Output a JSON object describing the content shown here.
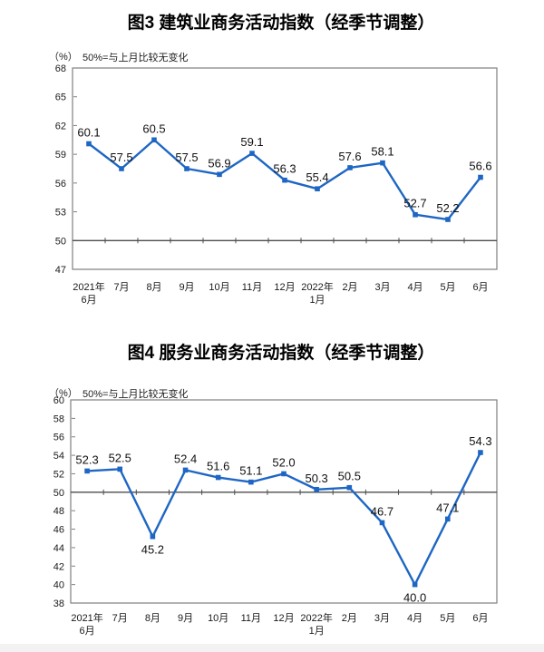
{
  "page": {
    "background": "#ffffff",
    "footer_strip_color": "#f2f2f2"
  },
  "chart_data": [
    {
      "type": "line",
      "title": "图3  建筑业商务活动指数（经季节调整）",
      "unit_label": "（%）",
      "note": "50%=与上月比较无变化",
      "categories": [
        "2021年\n6月",
        "7月",
        "8月",
        "9月",
        "10月",
        "11月",
        "12月",
        "2022年\n1月",
        "2月",
        "3月",
        "4月",
        "5月",
        "6月"
      ],
      "values": [
        60.1,
        57.5,
        60.5,
        57.5,
        56.9,
        59.1,
        56.3,
        55.4,
        57.6,
        58.1,
        52.7,
        52.2,
        56.6
      ],
      "ylim": [
        47,
        68
      ],
      "ystep": 3,
      "reference_line": 50,
      "labels_below": [],
      "line_color": "#1e66c4",
      "grid": false,
      "legend": "none"
    },
    {
      "type": "line",
      "title": "图4  服务业商务活动指数（经季节调整）",
      "unit_label": "（%）",
      "note": "50%=与上月比较无变化",
      "categories": [
        "2021年\n6月",
        "7月",
        "8月",
        "9月",
        "10月",
        "11月",
        "12月",
        "2022年\n1月",
        "2月",
        "3月",
        "4月",
        "5月",
        "6月"
      ],
      "values": [
        52.3,
        52.5,
        45.2,
        52.4,
        51.6,
        51.1,
        52.0,
        50.3,
        50.5,
        46.7,
        40.0,
        47.1,
        54.3
      ],
      "ylim": [
        38,
        60
      ],
      "ystep": 2,
      "reference_line": 50,
      "labels_below": [
        2,
        10
      ],
      "line_color": "#1e66c4",
      "grid": false,
      "legend": "none"
    }
  ]
}
